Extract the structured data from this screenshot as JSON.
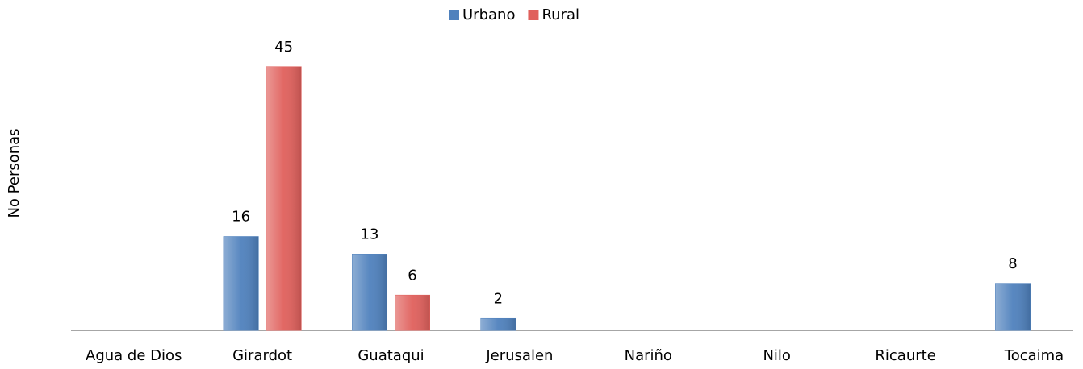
{
  "chart_data": {
    "type": "bar",
    "y_label": "No Personas",
    "categories": [
      "Agua de Dios",
      "Girardot",
      "Guataqui",
      "Jerusalen",
      "Nariño",
      "Nilo",
      "Ricaurte",
      "Tocaima"
    ],
    "series": [
      {
        "name": "Urbano",
        "color": "#4f81bd",
        "values": [
          null,
          16,
          13,
          2,
          null,
          null,
          null,
          8
        ]
      },
      {
        "name": "Rural",
        "color": "#e0605c",
        "values": [
          null,
          45,
          6,
          null,
          null,
          null,
          null,
          null
        ]
      }
    ],
    "ylim": [
      0,
      50
    ],
    "legend": "top"
  }
}
